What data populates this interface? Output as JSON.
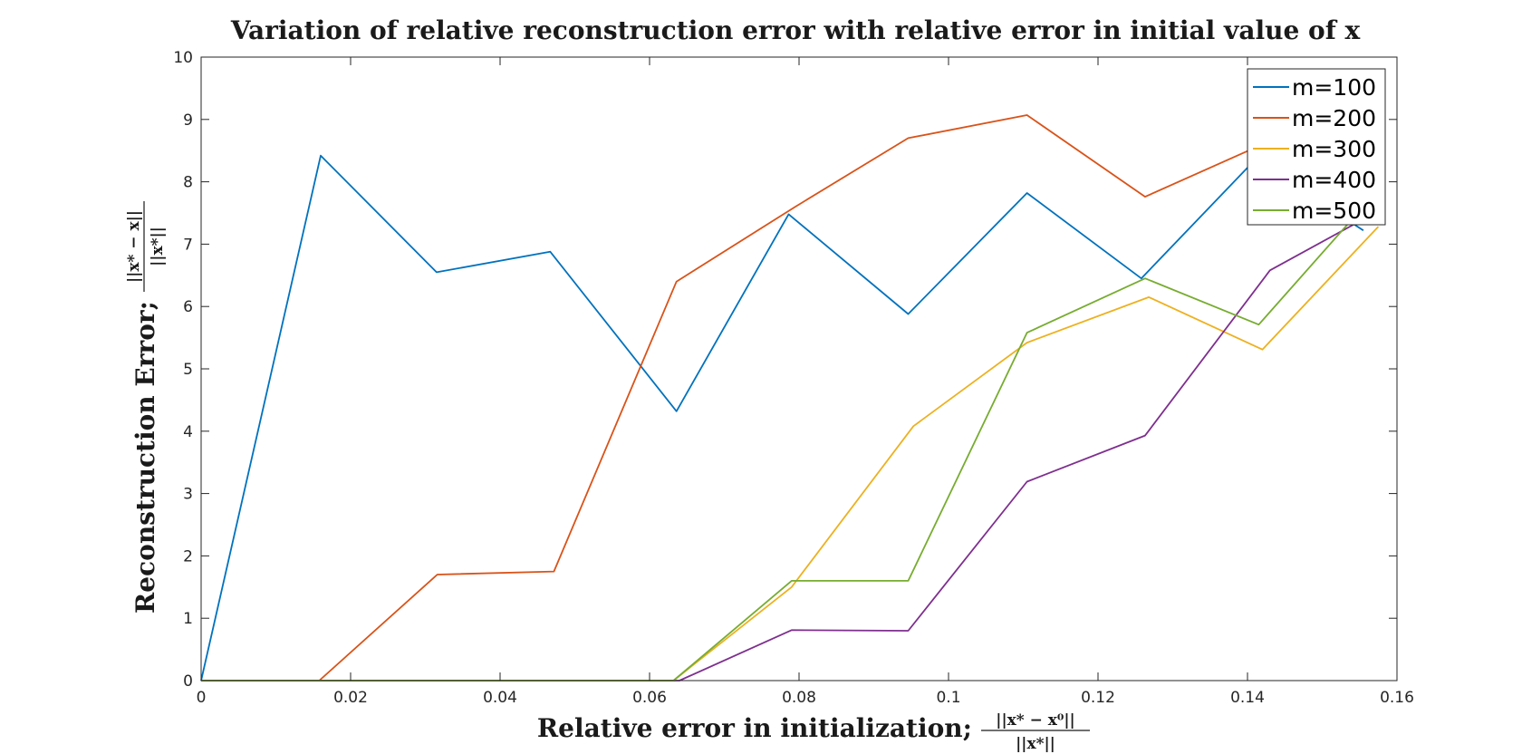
{
  "chart_data": {
    "type": "line",
    "title": "Variation of relative reconstruction error with relative error in initial value of x",
    "xlabel": "Relative error in initialization;",
    "xlabel_fraction": {
      "numerator": "||x* − x⁰||",
      "denominator": "||x*||"
    },
    "ylabel": "Reconstruction Error;",
    "ylabel_fraction": {
      "numerator": "||x* − x||",
      "denominator": "||x*||"
    },
    "xlim": [
      0,
      0.16
    ],
    "ylim": [
      0,
      10
    ],
    "xticks": [
      0,
      0.02,
      0.04,
      0.06,
      0.08,
      0.1,
      0.12,
      0.14,
      0.16
    ],
    "xtick_labels": [
      "0",
      "0.02",
      "0.04",
      "0.06",
      "0.08",
      "0.1",
      "0.12",
      "0.14",
      "0.16"
    ],
    "yticks": [
      0,
      1,
      2,
      3,
      4,
      5,
      6,
      7,
      8,
      9,
      10
    ],
    "ytick_labels": [
      "0",
      "1",
      "2",
      "3",
      "4",
      "5",
      "6",
      "7",
      "8",
      "9",
      "10"
    ],
    "grid": false,
    "legend_position": "top-right",
    "series": [
      {
        "name": "m=100",
        "color": "#0072BD",
        "x": [
          0,
          0.016,
          0.0315,
          0.0467,
          0.0636,
          0.0786,
          0.0946,
          0.1105,
          0.1258,
          0.141,
          0.1555
        ],
        "y": [
          0,
          8.42,
          6.55,
          6.88,
          4.32,
          7.48,
          5.88,
          7.82,
          6.45,
          8.35,
          7.22
        ]
      },
      {
        "name": "m=200",
        "color": "#D95319",
        "x": [
          0,
          0.0158,
          0.0316,
          0.0472,
          0.0636,
          0.0795,
          0.0946,
          0.1105,
          0.1263,
          0.142
        ],
        "y": [
          0,
          0,
          1.7,
          1.75,
          6.4,
          7.6,
          8.7,
          9.07,
          7.76,
          8.6
        ]
      },
      {
        "name": "m=300",
        "color": "#EDB120",
        "x": [
          0,
          0.0632,
          0.079,
          0.0953,
          0.1105,
          0.1268,
          0.142,
          0.1575
        ],
        "y": [
          0,
          0,
          1.5,
          4.08,
          5.42,
          6.15,
          5.31,
          7.28
        ]
      },
      {
        "name": "m=400",
        "color": "#7E2F8E",
        "x": [
          0,
          0.064,
          0.079,
          0.0946,
          0.1105,
          0.1263,
          0.143,
          0.1555
        ],
        "y": [
          0,
          0,
          0.81,
          0.8,
          3.19,
          3.93,
          6.58,
          7.4
        ]
      },
      {
        "name": "m=500",
        "color": "#77AC30",
        "x": [
          0,
          0.0632,
          0.079,
          0.0946,
          0.1105,
          0.1263,
          0.1415,
          0.154
        ],
        "y": [
          0,
          0,
          1.6,
          1.6,
          5.58,
          6.45,
          5.71,
          7.4
        ]
      }
    ]
  }
}
